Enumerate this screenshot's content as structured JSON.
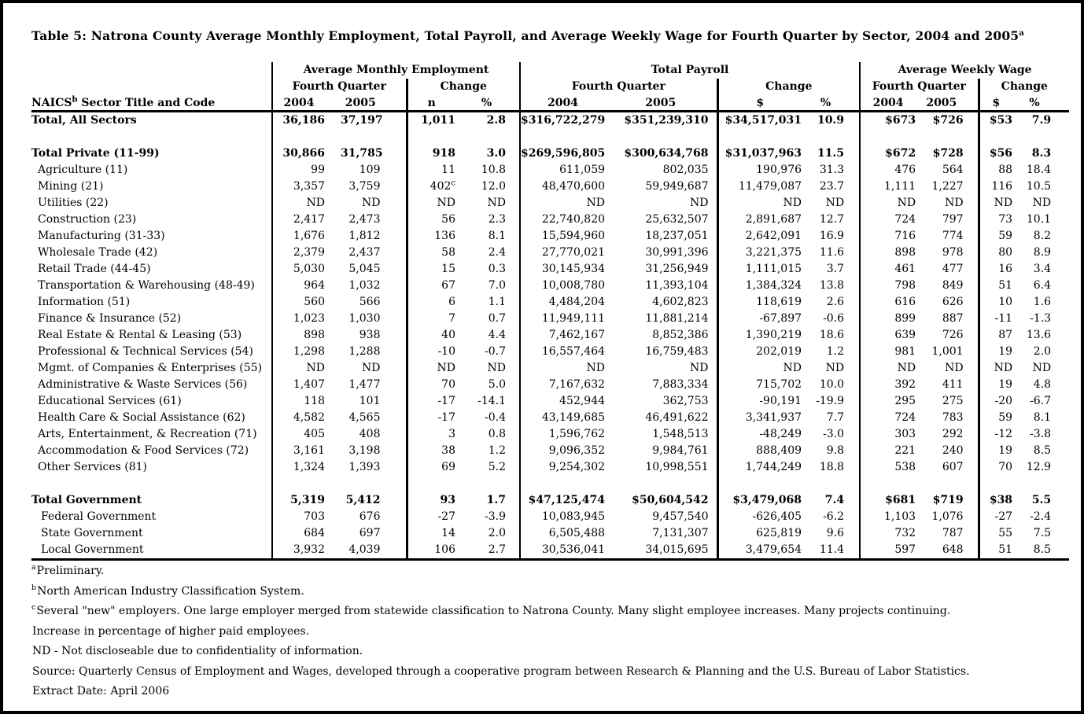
{
  "header": {
    "title": "Table 5: Natrona County Average Monthly Employment, Total Payroll, and Average Weekly Wage for Fourth Quarter by Sector, 2004 and 2005",
    "title_sup": "a"
  },
  "colors": {
    "text": "#000000",
    "background": "#ffffff",
    "border": "#000000"
  },
  "table": {
    "row_header": {
      "pre": "NAICS",
      "sup": "b",
      "post": " Sector Title and Code"
    },
    "groups": [
      {
        "label": "Average Monthly Employment",
        "sub": [
          "Fourth Quarter",
          "Change"
        ],
        "cols": [
          "2004",
          "2005",
          "n",
          "%"
        ]
      },
      {
        "label": "Total Payroll",
        "sub": [
          "Fourth Quarter",
          "Change"
        ],
        "cols": [
          "2004",
          "2005",
          "$",
          "%"
        ]
      },
      {
        "label": "Average Weekly Wage",
        "sub": [
          "Fourth Quarter",
          "Change"
        ],
        "cols": [
          "2004",
          "2005",
          "$",
          "%"
        ]
      }
    ],
    "rows": [
      {
        "label": "Total, All Sectors",
        "bold": true,
        "indent": 0,
        "cells": [
          "36,186",
          "37,197",
          "1,011",
          "2.8",
          "$316,722,279",
          "$351,239,310",
          "$34,517,031",
          "10.9",
          "$673",
          "$726",
          "$53",
          "7.9"
        ]
      },
      {
        "spacer": true
      },
      {
        "label": "Total Private (11-99)",
        "bold": true,
        "indent": 0,
        "cells": [
          "30,866",
          "31,785",
          "918",
          "3.0",
          "$269,596,805",
          "$300,634,768",
          "$31,037,963",
          "11.5",
          "$672",
          "$728",
          "$56",
          "8.3"
        ]
      },
      {
        "label": "Agriculture (11)",
        "indent": 1,
        "cells": [
          "99",
          "109",
          "11",
          "10.8",
          "611,059",
          "802,035",
          "190,976",
          "31.3",
          "476",
          "564",
          "88",
          "18.4"
        ]
      },
      {
        "label": "Mining (21)",
        "indent": 1,
        "cells": [
          "3,357",
          "3,759",
          "402^c",
          "12.0",
          "48,470,600",
          "59,949,687",
          "11,479,087",
          "23.7",
          "1,111",
          "1,227",
          "116",
          "10.5"
        ]
      },
      {
        "label": "Utilities (22)",
        "indent": 1,
        "cells": [
          "ND",
          "ND",
          "ND",
          "ND",
          "ND",
          "ND",
          "ND",
          "ND",
          "ND",
          "ND",
          "ND",
          "ND"
        ]
      },
      {
        "label": "Construction (23)",
        "indent": 1,
        "cells": [
          "2,417",
          "2,473",
          "56",
          "2.3",
          "22,740,820",
          "25,632,507",
          "2,891,687",
          "12.7",
          "724",
          "797",
          "73",
          "10.1"
        ]
      },
      {
        "label": "Manufacturing (31-33)",
        "indent": 1,
        "cells": [
          "1,676",
          "1,812",
          "136",
          "8.1",
          "15,594,960",
          "18,237,051",
          "2,642,091",
          "16.9",
          "716",
          "774",
          "59",
          "8.2"
        ]
      },
      {
        "label": "Wholesale Trade (42)",
        "indent": 1,
        "cells": [
          "2,379",
          "2,437",
          "58",
          "2.4",
          "27,770,021",
          "30,991,396",
          "3,221,375",
          "11.6",
          "898",
          "978",
          "80",
          "8.9"
        ]
      },
      {
        "label": "Retail Trade (44-45)",
        "indent": 1,
        "cells": [
          "5,030",
          "5,045",
          "15",
          "0.3",
          "30,145,934",
          "31,256,949",
          "1,111,015",
          "3.7",
          "461",
          "477",
          "16",
          "3.4"
        ]
      },
      {
        "label": "Transportation & Warehousing (48-49)",
        "indent": 1,
        "cells": [
          "964",
          "1,032",
          "67",
          "7.0",
          "10,008,780",
          "11,393,104",
          "1,384,324",
          "13.8",
          "798",
          "849",
          "51",
          "6.4"
        ]
      },
      {
        "label": "Information (51)",
        "indent": 1,
        "cells": [
          "560",
          "566",
          "6",
          "1.1",
          "4,484,204",
          "4,602,823",
          "118,619",
          "2.6",
          "616",
          "626",
          "10",
          "1.6"
        ]
      },
      {
        "label": "Finance & Insurance (52)",
        "indent": 1,
        "cells": [
          "1,023",
          "1,030",
          "7",
          "0.7",
          "11,949,111",
          "11,881,214",
          "-67,897",
          "-0.6",
          "899",
          "887",
          "-11",
          "-1.3"
        ]
      },
      {
        "label": "Real Estate & Rental & Leasing (53)",
        "indent": 1,
        "cells": [
          "898",
          "938",
          "40",
          "4.4",
          "7,462,167",
          "8,852,386",
          "1,390,219",
          "18.6",
          "639",
          "726",
          "87",
          "13.6"
        ]
      },
      {
        "label": "Professional & Technical Services (54)",
        "indent": 1,
        "cells": [
          "1,298",
          "1,288",
          "-10",
          "-0.7",
          "16,557,464",
          "16,759,483",
          "202,019",
          "1.2",
          "981",
          "1,001",
          "19",
          "2.0"
        ]
      },
      {
        "label": "Mgmt. of Companies & Enterprises (55)",
        "indent": 1,
        "cells": [
          "ND",
          "ND",
          "ND",
          "ND",
          "ND",
          "ND",
          "ND",
          "ND",
          "ND",
          "ND",
          "ND",
          "ND"
        ]
      },
      {
        "label": "Administrative & Waste Services (56)",
        "indent": 1,
        "cells": [
          "1,407",
          "1,477",
          "70",
          "5.0",
          "7,167,632",
          "7,883,334",
          "715,702",
          "10.0",
          "392",
          "411",
          "19",
          "4.8"
        ]
      },
      {
        "label": "Educational Services (61)",
        "indent": 1,
        "cells": [
          "118",
          "101",
          "-17",
          "-14.1",
          "452,944",
          "362,753",
          "-90,191",
          "-19.9",
          "295",
          "275",
          "-20",
          "-6.7"
        ]
      },
      {
        "label": "Health Care & Social Assistance (62)",
        "indent": 1,
        "cells": [
          "4,582",
          "4,565",
          "-17",
          "-0.4",
          "43,149,685",
          "46,491,622",
          "3,341,937",
          "7.7",
          "724",
          "783",
          "59",
          "8.1"
        ]
      },
      {
        "label": "Arts, Entertainment, & Recreation (71)",
        "indent": 1,
        "cells": [
          "405",
          "408",
          "3",
          "0.8",
          "1,596,762",
          "1,548,513",
          "-48,249",
          "-3.0",
          "303",
          "292",
          "-12",
          "-3.8"
        ]
      },
      {
        "label": "Accommodation & Food Services (72)",
        "indent": 1,
        "cells": [
          "3,161",
          "3,198",
          "38",
          "1.2",
          "9,096,352",
          "9,984,761",
          "888,409",
          "9.8",
          "221",
          "240",
          "19",
          "8.5"
        ]
      },
      {
        "label": "Other Services (81)",
        "indent": 1,
        "cells": [
          "1,324",
          "1,393",
          "69",
          "5.2",
          "9,254,302",
          "10,998,551",
          "1,744,249",
          "18.8",
          "538",
          "607",
          "70",
          "12.9"
        ]
      },
      {
        "spacer": true
      },
      {
        "label": "Total Government",
        "bold": true,
        "indent": 0,
        "cells": [
          "5,319",
          "5,412",
          "93",
          "1.7",
          "$47,125,474",
          "$50,604,542",
          "$3,479,068",
          "7.4",
          "$681",
          "$719",
          "$38",
          "5.5"
        ]
      },
      {
        "label": "Federal Government",
        "indent": 2,
        "cells": [
          "703",
          "676",
          "-27",
          "-3.9",
          "10,083,945",
          "9,457,540",
          "-626,405",
          "-6.2",
          "1,103",
          "1,076",
          "-27",
          "-2.4"
        ]
      },
      {
        "label": "State Government",
        "indent": 2,
        "cells": [
          "684",
          "697",
          "14",
          "2.0",
          "6,505,488",
          "7,131,307",
          "625,819",
          "9.6",
          "732",
          "787",
          "55",
          "7.5"
        ]
      },
      {
        "label": "Local Government",
        "indent": 2,
        "cells": [
          "3,932",
          "4,039",
          "106",
          "2.7",
          "30,536,041",
          "34,015,695",
          "3,479,654",
          "11.4",
          "597",
          "648",
          "51",
          "8.5"
        ]
      }
    ]
  },
  "footnotes": [
    {
      "sup": "a",
      "text": "Preliminary."
    },
    {
      "sup": "b",
      "text": "North American Industry Classification System."
    },
    {
      "sup": "c",
      "text": "Several \"new\" employers. One large employer merged from statewide classification to Natrona County. Many slight employee increases. Many projects continuing."
    },
    {
      "sup": "",
      "text": "Increase in percentage of higher paid employees."
    },
    {
      "sup": "",
      "text": "ND - Not discloseable due to confidentiality of information."
    },
    {
      "sup": "",
      "text": "Source: Quarterly Census of Employment and Wages, developed through a cooperative program between Research & Planning and the U.S. Bureau of Labor Statistics."
    },
    {
      "sup": "",
      "text": "Extract Date: April 2006"
    }
  ]
}
